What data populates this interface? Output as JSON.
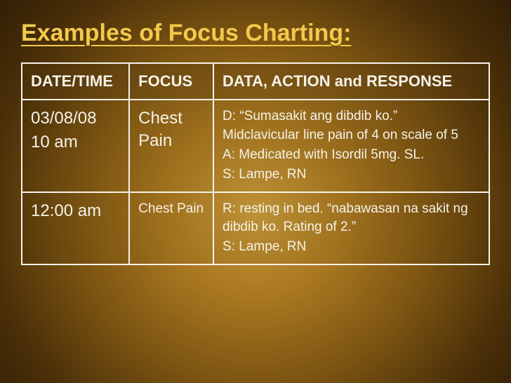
{
  "title": "Examples of Focus Charting:",
  "table": {
    "columns": [
      "DATE/TIME",
      "FOCUS",
      "DATA, ACTION and RESPONSE"
    ],
    "col_widths_pct": [
      23,
      18,
      59
    ],
    "header_fontsize": 22,
    "rows": [
      {
        "datetime_lines": [
          "03/08/08",
          "10 am"
        ],
        "datetime_fontsize": 24,
        "focus": "Chest Pain",
        "focus_fontsize": 24,
        "dar_lines": [
          "D: “Sumasakit ang dibdib ko.”",
          "Midclavicular line pain of 4 on scale of 5",
          "A: Medicated with Isordil 5mg. SL.",
          "S: Lampe, RN"
        ],
        "dar_fontsize": 19
      },
      {
        "datetime_lines": [
          "12:00 am"
        ],
        "datetime_fontsize": 24,
        "focus": "Chest Pain",
        "focus_fontsize": 19,
        "dar_lines": [
          "R: resting in bed. “nabawasan na sakit ng dibdib ko. Rating of 2.”",
          "S: Lampe, RN"
        ],
        "dar_fontsize": 19
      }
    ]
  },
  "colors": {
    "title": "#f2c94c",
    "text": "#f5f2e8",
    "border": "#f5f2e8",
    "bg_center": "#c89a3a",
    "bg_edge": "#2a1a05"
  }
}
